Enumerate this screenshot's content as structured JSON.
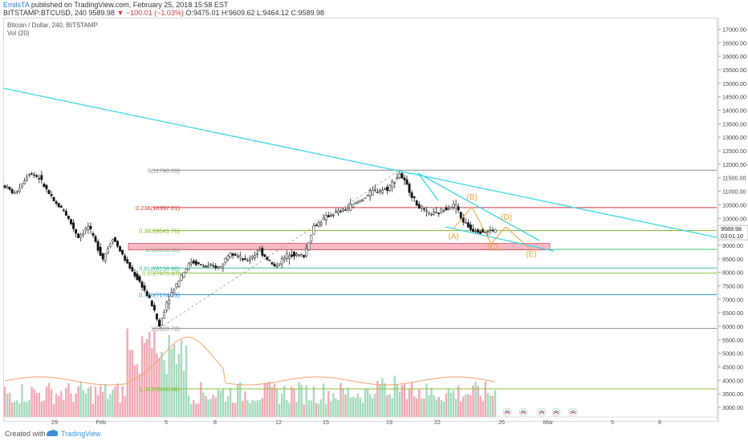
{
  "header": {
    "author": "EmilsTA",
    "published": "published on TradingView.com, February 25, 2018 15:58 EST",
    "ticker_line": "BITSTAMP:BTCUSD, 240",
    "last": "9589.98",
    "change": "▼ −100.01 (−1.03%)",
    "ohlc": "O:9475.01 H:9609.62 L:9464.12 C:9589.98"
  },
  "chart_title": "Bitcoin / Dollar, 240, BITSTAMP",
  "volume_label": "Vol (20)",
  "footer": {
    "created_with": "Created with",
    "brand": "TradingView"
  },
  "chart_data": {
    "type": "candlestick",
    "y_axis": {
      "min": 2800,
      "max": 17400,
      "ticks": [
        3000,
        3500,
        4000,
        4500,
        5000,
        5500,
        6000,
        6500,
        7000,
        7500,
        8000,
        8500,
        9000,
        9500,
        10000,
        10500,
        11000,
        11500,
        12000,
        12500,
        13000,
        13500,
        14000,
        14500,
        15000,
        15500,
        16000,
        16500,
        17000
      ]
    },
    "x_ticks": [
      "29",
      "Feb",
      "5",
      "8",
      "12",
      "15",
      "19",
      "22",
      "26",
      "Mar",
      "5",
      "8"
    ],
    "price_anchors": [
      [
        0,
        11200
      ],
      [
        4,
        10900
      ],
      [
        10,
        11700
      ],
      [
        14,
        11500
      ],
      [
        20,
        10600
      ],
      [
        24,
        10300
      ],
      [
        30,
        9300
      ],
      [
        34,
        9700
      ],
      [
        40,
        8500
      ],
      [
        44,
        9300
      ],
      [
        50,
        8300
      ],
      [
        56,
        7500
      ],
      [
        60,
        6800
      ],
      [
        63,
        6000
      ],
      [
        66,
        6900
      ],
      [
        72,
        7900
      ],
      [
        76,
        8400
      ],
      [
        82,
        8200
      ],
      [
        88,
        8200
      ],
      [
        92,
        8800
      ],
      [
        98,
        8400
      ],
      [
        104,
        8800
      ],
      [
        110,
        8200
      ],
      [
        116,
        8700
      ],
      [
        122,
        8600
      ],
      [
        126,
        9700
      ],
      [
        132,
        10100
      ],
      [
        138,
        10300
      ],
      [
        144,
        10600
      ],
      [
        150,
        11000
      ],
      [
        156,
        11100
      ],
      [
        161,
        11650
      ],
      [
        164,
        11200
      ],
      [
        168,
        10500
      ],
      [
        172,
        10200
      ],
      [
        176,
        10150
      ],
      [
        180,
        10400
      ],
      [
        184,
        10500
      ],
      [
        186,
        10000
      ],
      [
        190,
        9600
      ],
      [
        196,
        9500
      ],
      [
        200,
        9589.98
      ]
    ],
    "volume_max": 10,
    "fib_levels": [
      {
        "label": "0(11780.00)",
        "value": 11780.0,
        "color": "#8a8a8a"
      },
      {
        "label": "0.236(10397.21)",
        "value": 10397.21,
        "color": "#d23a3a"
      },
      {
        "label": "0.382(9541.76)",
        "value": 9541.76,
        "color": "#85b32e"
      },
      {
        "label": "0.5(8850.36)",
        "value": 8850.36,
        "color": "#3cc070"
      },
      {
        "label": "0.618(8158.96)",
        "value": 8158.96,
        "color": "#3cbf9e"
      },
      {
        "label": "0.65(7971.47)",
        "value": 7971.47,
        "color": "#8bbf3c"
      },
      {
        "label": "0.786(7174.59)",
        "value": 7174.59,
        "color": "#2a8fd4"
      },
      {
        "label": "1(5920.72)",
        "value": 5920.72,
        "color": "#8a8a8a"
      },
      {
        "label": "1.382(3682.48)",
        "value": 3682.48,
        "color": "#8bbf3c"
      }
    ],
    "support_zone": {
      "from": 8830,
      "to": 9070,
      "color": "#f4a3b0"
    },
    "wave_labels": [
      "(A)",
      "(B)",
      "(C)",
      "(D)",
      "(E)"
    ],
    "price_badge": {
      "value": "9589.98",
      "countdown": "03:01:10"
    },
    "annotation_color": "#e8a43a",
    "trendline_color": "#3ad6e6"
  }
}
